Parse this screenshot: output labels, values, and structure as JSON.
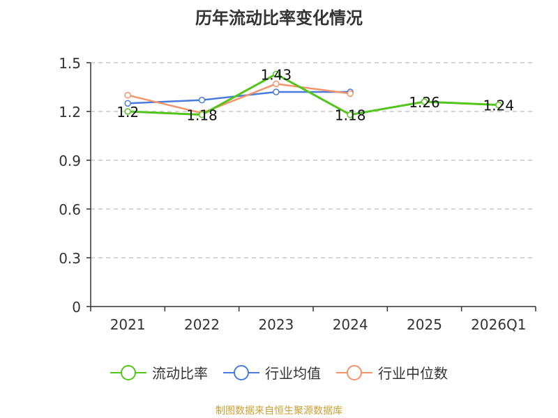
{
  "chart_data": {
    "type": "line",
    "title": "历年流动比率变化情况",
    "categories": [
      "2021",
      "2022",
      "2023",
      "2024",
      "2025",
      "2026Q1"
    ],
    "y_ticks": [
      "0",
      "0.3",
      "0.6",
      "0.9",
      "1.2",
      "1.5"
    ],
    "ylim": [
      0,
      1.5
    ],
    "grid": true,
    "legend_position": "bottom",
    "series": [
      {
        "name": "流动比率",
        "color": "#52c41a",
        "values": [
          1.2,
          1.18,
          1.43,
          1.18,
          1.26,
          1.24
        ],
        "labels": [
          "1.2",
          "1.18",
          "1.43",
          "1.18",
          "1.26",
          "1.24"
        ]
      },
      {
        "name": "行业均值",
        "color": "#4a7bdc",
        "values": [
          1.25,
          1.27,
          1.32,
          1.32,
          null,
          null
        ]
      },
      {
        "name": "行业中位数",
        "color": "#f5936a",
        "values": [
          1.3,
          1.19,
          1.37,
          1.31,
          null,
          null
        ]
      }
    ]
  },
  "footer": {
    "source": "制图数据来自恒生聚源数据库"
  }
}
